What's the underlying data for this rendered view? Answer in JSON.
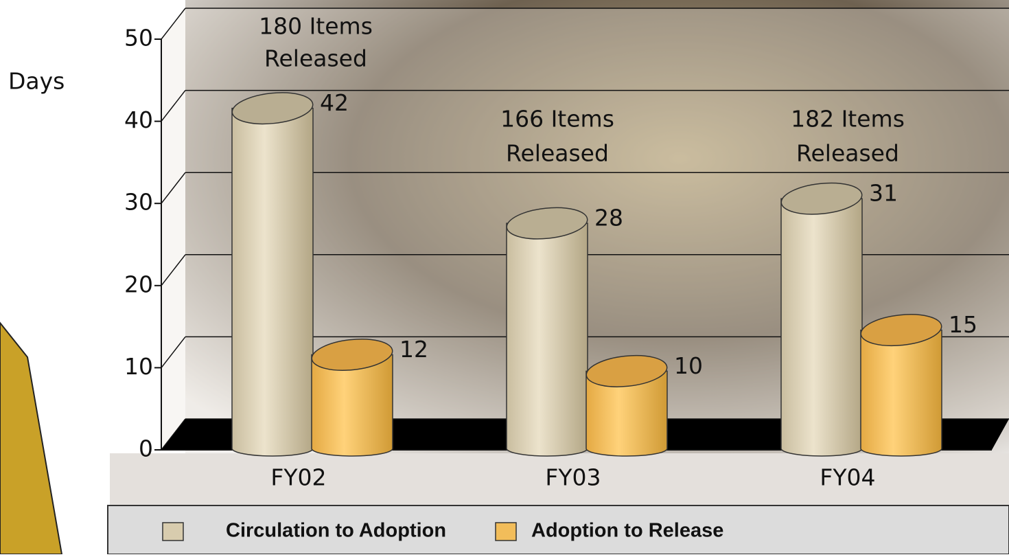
{
  "chart_data": {
    "type": "bar",
    "y_label": "Days",
    "categories": [
      "FY02",
      "FY03",
      "FY04"
    ],
    "series": [
      {
        "name": "Circulation to Adoption",
        "color": "#d8ccae",
        "values": [
          42,
          28,
          31
        ]
      },
      {
        "name": "Adoption to Release",
        "color": "#f2bd5a",
        "values": [
          12,
          10,
          15
        ]
      }
    ],
    "annotations": [
      [
        "180 Items",
        "Released"
      ],
      [
        "166 Items",
        "Released"
      ],
      [
        "182 Items",
        "Released"
      ]
    ],
    "ylim": [
      0,
      50
    ],
    "yticks": [
      0,
      10,
      20,
      30,
      40,
      50
    ],
    "grid": true
  }
}
